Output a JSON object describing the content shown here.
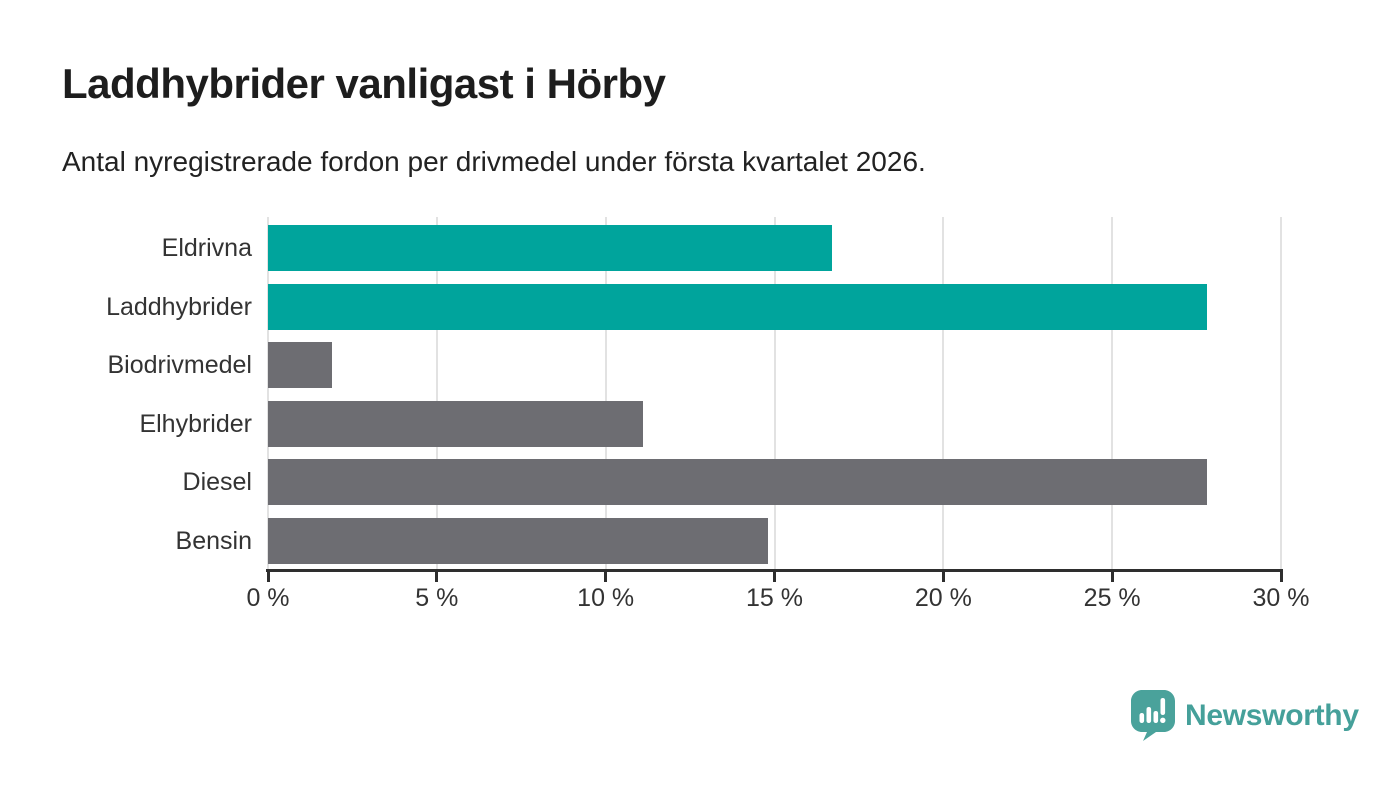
{
  "header": {
    "title": "Laddhybrider vanligast i Hörby",
    "subtitle": "Antal nyregistrerade fordon per drivmedel under första kvartalet 2026."
  },
  "chart_data": {
    "type": "bar",
    "orientation": "horizontal",
    "title": "Laddhybrider vanligast i Hörby",
    "subtitle": "Antal nyregistrerade fordon per drivmedel under första kvartalet 2026.",
    "categories": [
      "Eldrivna",
      "Laddhybrider",
      "Biodrivmedel",
      "Elhybrider",
      "Diesel",
      "Bensin"
    ],
    "values": [
      16.7,
      27.8,
      1.9,
      11.1,
      27.8,
      14.8
    ],
    "unit": "%",
    "bar_colors": [
      "#00a49c",
      "#00a49c",
      "#6d6d72",
      "#6d6d72",
      "#6d6d72",
      "#6d6d72"
    ],
    "xlim": [
      0,
      30
    ],
    "x_ticks": [
      0,
      5,
      10,
      15,
      20,
      25,
      30
    ],
    "x_tick_labels": [
      "0 %",
      "5 %",
      "10 %",
      "15 %",
      "20 %",
      "25 %",
      "30 %"
    ],
    "grid": true,
    "legend": "none"
  },
  "colors": {
    "highlight_bar": "#00a49c",
    "default_bar": "#6d6d72",
    "gridline": "#e2e2e2",
    "axis": "#2e2e2e",
    "text": "#333333",
    "logo": "#45a09a"
  },
  "branding": {
    "logo_icon": "newsworthy-pin-barchart-icon",
    "logo_text": "Newsworthy"
  }
}
